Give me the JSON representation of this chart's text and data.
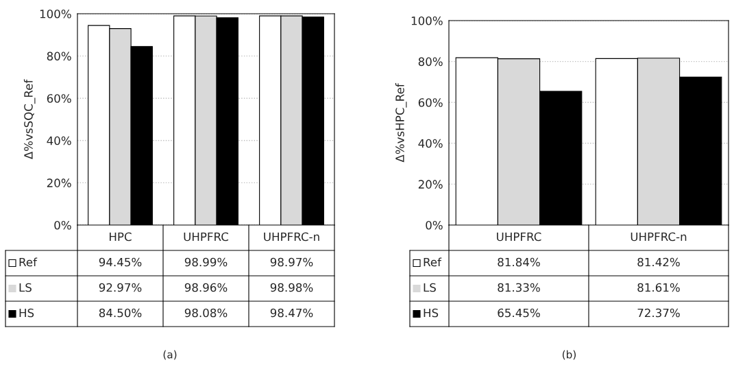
{
  "chart_data": [
    {
      "type": "bar",
      "categories": [
        "HPC",
        "UHPFRC",
        "UHPFRC-n"
      ],
      "ylabel": "Δ%vsSQC_Ref",
      "ylim": [
        0,
        100
      ],
      "yticks": [
        {
          "value": 0,
          "label": "0%"
        },
        {
          "value": 20,
          "label": "20%"
        },
        {
          "value": 40,
          "label": "40%"
        },
        {
          "value": 60,
          "label": "60%"
        },
        {
          "value": 80,
          "label": "80%"
        },
        {
          "value": 100,
          "label": "100%"
        }
      ],
      "grid": "y",
      "legend": "bottom left",
      "series": [
        {
          "name": "Ref",
          "color": "#ffffff",
          "values": [
            94.45,
            98.99,
            98.97
          ],
          "value_labels": [
            "94.45%",
            "98.99%",
            "98.97%"
          ]
        },
        {
          "name": "LS",
          "color": "#d9d9d9",
          "values": [
            92.97,
            98.96,
            98.98
          ],
          "value_labels": [
            "92.97%",
            "98.96%",
            "98.98%"
          ]
        },
        {
          "name": "HS",
          "color": "#000000",
          "values": [
            84.5,
            98.08,
            98.47
          ],
          "value_labels": [
            "84.50%",
            "98.08%",
            "98.47%"
          ]
        }
      ],
      "annotations": [
        "(a)"
      ]
    },
    {
      "type": "bar",
      "categories": [
        "UHPFRC",
        "UHPFRC-n"
      ],
      "ylabel": "Δ%vsHPC_Ref",
      "ylim": [
        0,
        100
      ],
      "yticks": [
        {
          "value": 0,
          "label": "0%"
        },
        {
          "value": 20,
          "label": "20%"
        },
        {
          "value": 40,
          "label": "40%"
        },
        {
          "value": 60,
          "label": "60%"
        },
        {
          "value": 80,
          "label": "80%"
        },
        {
          "value": 100,
          "label": "100%"
        }
      ],
      "grid": "y",
      "legend": "bottom left",
      "series": [
        {
          "name": "Ref",
          "color": "#ffffff",
          "values": [
            81.84,
            81.42
          ],
          "value_labels": [
            "81.84%",
            "81.42%"
          ]
        },
        {
          "name": "LS",
          "color": "#d9d9d9",
          "values": [
            81.33,
            81.61
          ],
          "value_labels": [
            "81.33%",
            "81.61%"
          ]
        },
        {
          "name": "HS",
          "color": "#000000",
          "values": [
            65.45,
            72.37
          ],
          "value_labels": [
            "65.45%",
            "72.37%"
          ]
        }
      ],
      "annotations": [
        "(b)"
      ]
    }
  ]
}
